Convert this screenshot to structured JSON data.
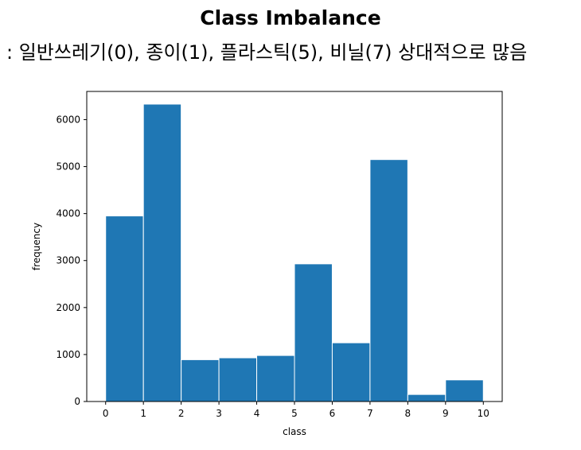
{
  "header": {
    "title": "Class Imbalance",
    "subtitle": ": 일반쓰레기(0), 종이(1), 플라스틱(5), 비닐(7) 상대적으로 많음"
  },
  "chart_data": {
    "type": "bar",
    "title": "",
    "xlabel": "class",
    "ylabel": "frequency",
    "bin_edges": [
      0,
      1,
      2,
      3,
      4,
      5,
      6,
      7,
      8,
      9,
      10
    ],
    "values": [
      3950,
      6330,
      890,
      930,
      980,
      2930,
      1250,
      5150,
      150,
      460
    ],
    "xlim": [
      -0.5,
      10.5
    ],
    "ylim": [
      0,
      6600
    ],
    "xticks": [
      "0",
      "1",
      "2",
      "3",
      "4",
      "5",
      "6",
      "7",
      "8",
      "9",
      "10"
    ],
    "yticks": [
      "0",
      "1000",
      "2000",
      "3000",
      "4000",
      "5000",
      "6000"
    ],
    "bar_color": "#1f77b4",
    "edge_color": "#ffffff",
    "grid": false,
    "legend": "none"
  }
}
